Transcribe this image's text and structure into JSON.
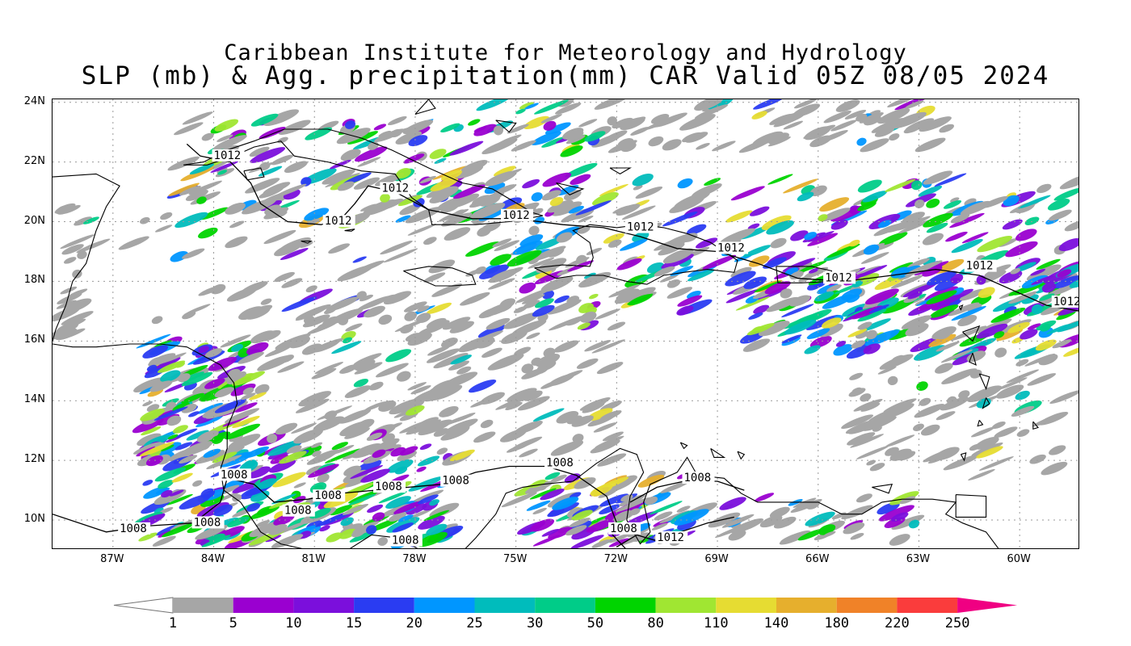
{
  "title_line1": "Caribbean Institute for Meteorology and Hydrology",
  "title_line2": "SLP (mb) & Agg. precipitation(mm) CAR Valid 05Z 08/05 2024",
  "latitudes": [
    "24N",
    "22N",
    "20N",
    "18N",
    "16N",
    "14N",
    "12N",
    "10N"
  ],
  "longitudes": [
    "87W",
    "84W",
    "81W",
    "78W",
    "75W",
    "72W",
    "69W",
    "66W",
    "63W",
    "60W"
  ],
  "map_extent": {
    "lon_min": -88.8,
    "lon_max": -58.2,
    "lat_min": 9.0,
    "lat_max": 24.1
  },
  "isobar_labels": [
    {
      "text": "1012",
      "lon": -84.0,
      "lat": 22.1
    },
    {
      "text": "1012",
      "lon": -80.7,
      "lat": 19.9
    },
    {
      "text": "1012",
      "lon": -79.0,
      "lat": 21.0
    },
    {
      "text": "1012",
      "lon": -75.4,
      "lat": 20.1
    },
    {
      "text": "1012",
      "lon": -71.7,
      "lat": 19.7
    },
    {
      "text": "1012",
      "lon": -69.0,
      "lat": 19.0
    },
    {
      "text": "1012",
      "lon": -65.8,
      "lat": 18.0
    },
    {
      "text": "1012",
      "lon": -61.6,
      "lat": 18.4
    },
    {
      "text": "1012",
      "lon": -59.0,
      "lat": 17.2
    },
    {
      "text": "1008",
      "lon": -83.8,
      "lat": 11.4
    },
    {
      "text": "1008",
      "lon": -81.0,
      "lat": 10.7
    },
    {
      "text": "1008",
      "lon": -81.9,
      "lat": 10.2
    },
    {
      "text": "1008",
      "lon": -79.2,
      "lat": 11.0
    },
    {
      "text": "1008",
      "lon": -77.2,
      "lat": 11.2
    },
    {
      "text": "1008",
      "lon": -74.1,
      "lat": 11.8
    },
    {
      "text": "1008",
      "lon": -72.2,
      "lat": 9.6
    },
    {
      "text": "1008",
      "lon": -70.0,
      "lat": 11.3
    },
    {
      "text": "1008",
      "lon": -86.8,
      "lat": 9.6
    },
    {
      "text": "1008",
      "lon": -84.6,
      "lat": 9.8
    },
    {
      "text": "1008",
      "lon": -78.7,
      "lat": 9.2
    },
    {
      "text": "1012",
      "lon": -70.8,
      "lat": 9.3
    }
  ],
  "colorbar": {
    "levels": [
      "1",
      "5",
      "10",
      "15",
      "20",
      "25",
      "30",
      "50",
      "80",
      "110",
      "140",
      "180",
      "220",
      "250"
    ],
    "colors": [
      "#a6a6a6",
      "#9a00d0",
      "#7b0fdc",
      "#2a3cf2",
      "#0096ff",
      "#00bcbc",
      "#00cc88",
      "#00d400",
      "#a0e632",
      "#e6dc32",
      "#e6af2d",
      "#f08228",
      "#fa3c3c"
    ],
    "under_color": "#ffffff",
    "over_color": "#f00082"
  },
  "colors": {
    "coast": "#000000",
    "grid": "#9a9a9a"
  }
}
